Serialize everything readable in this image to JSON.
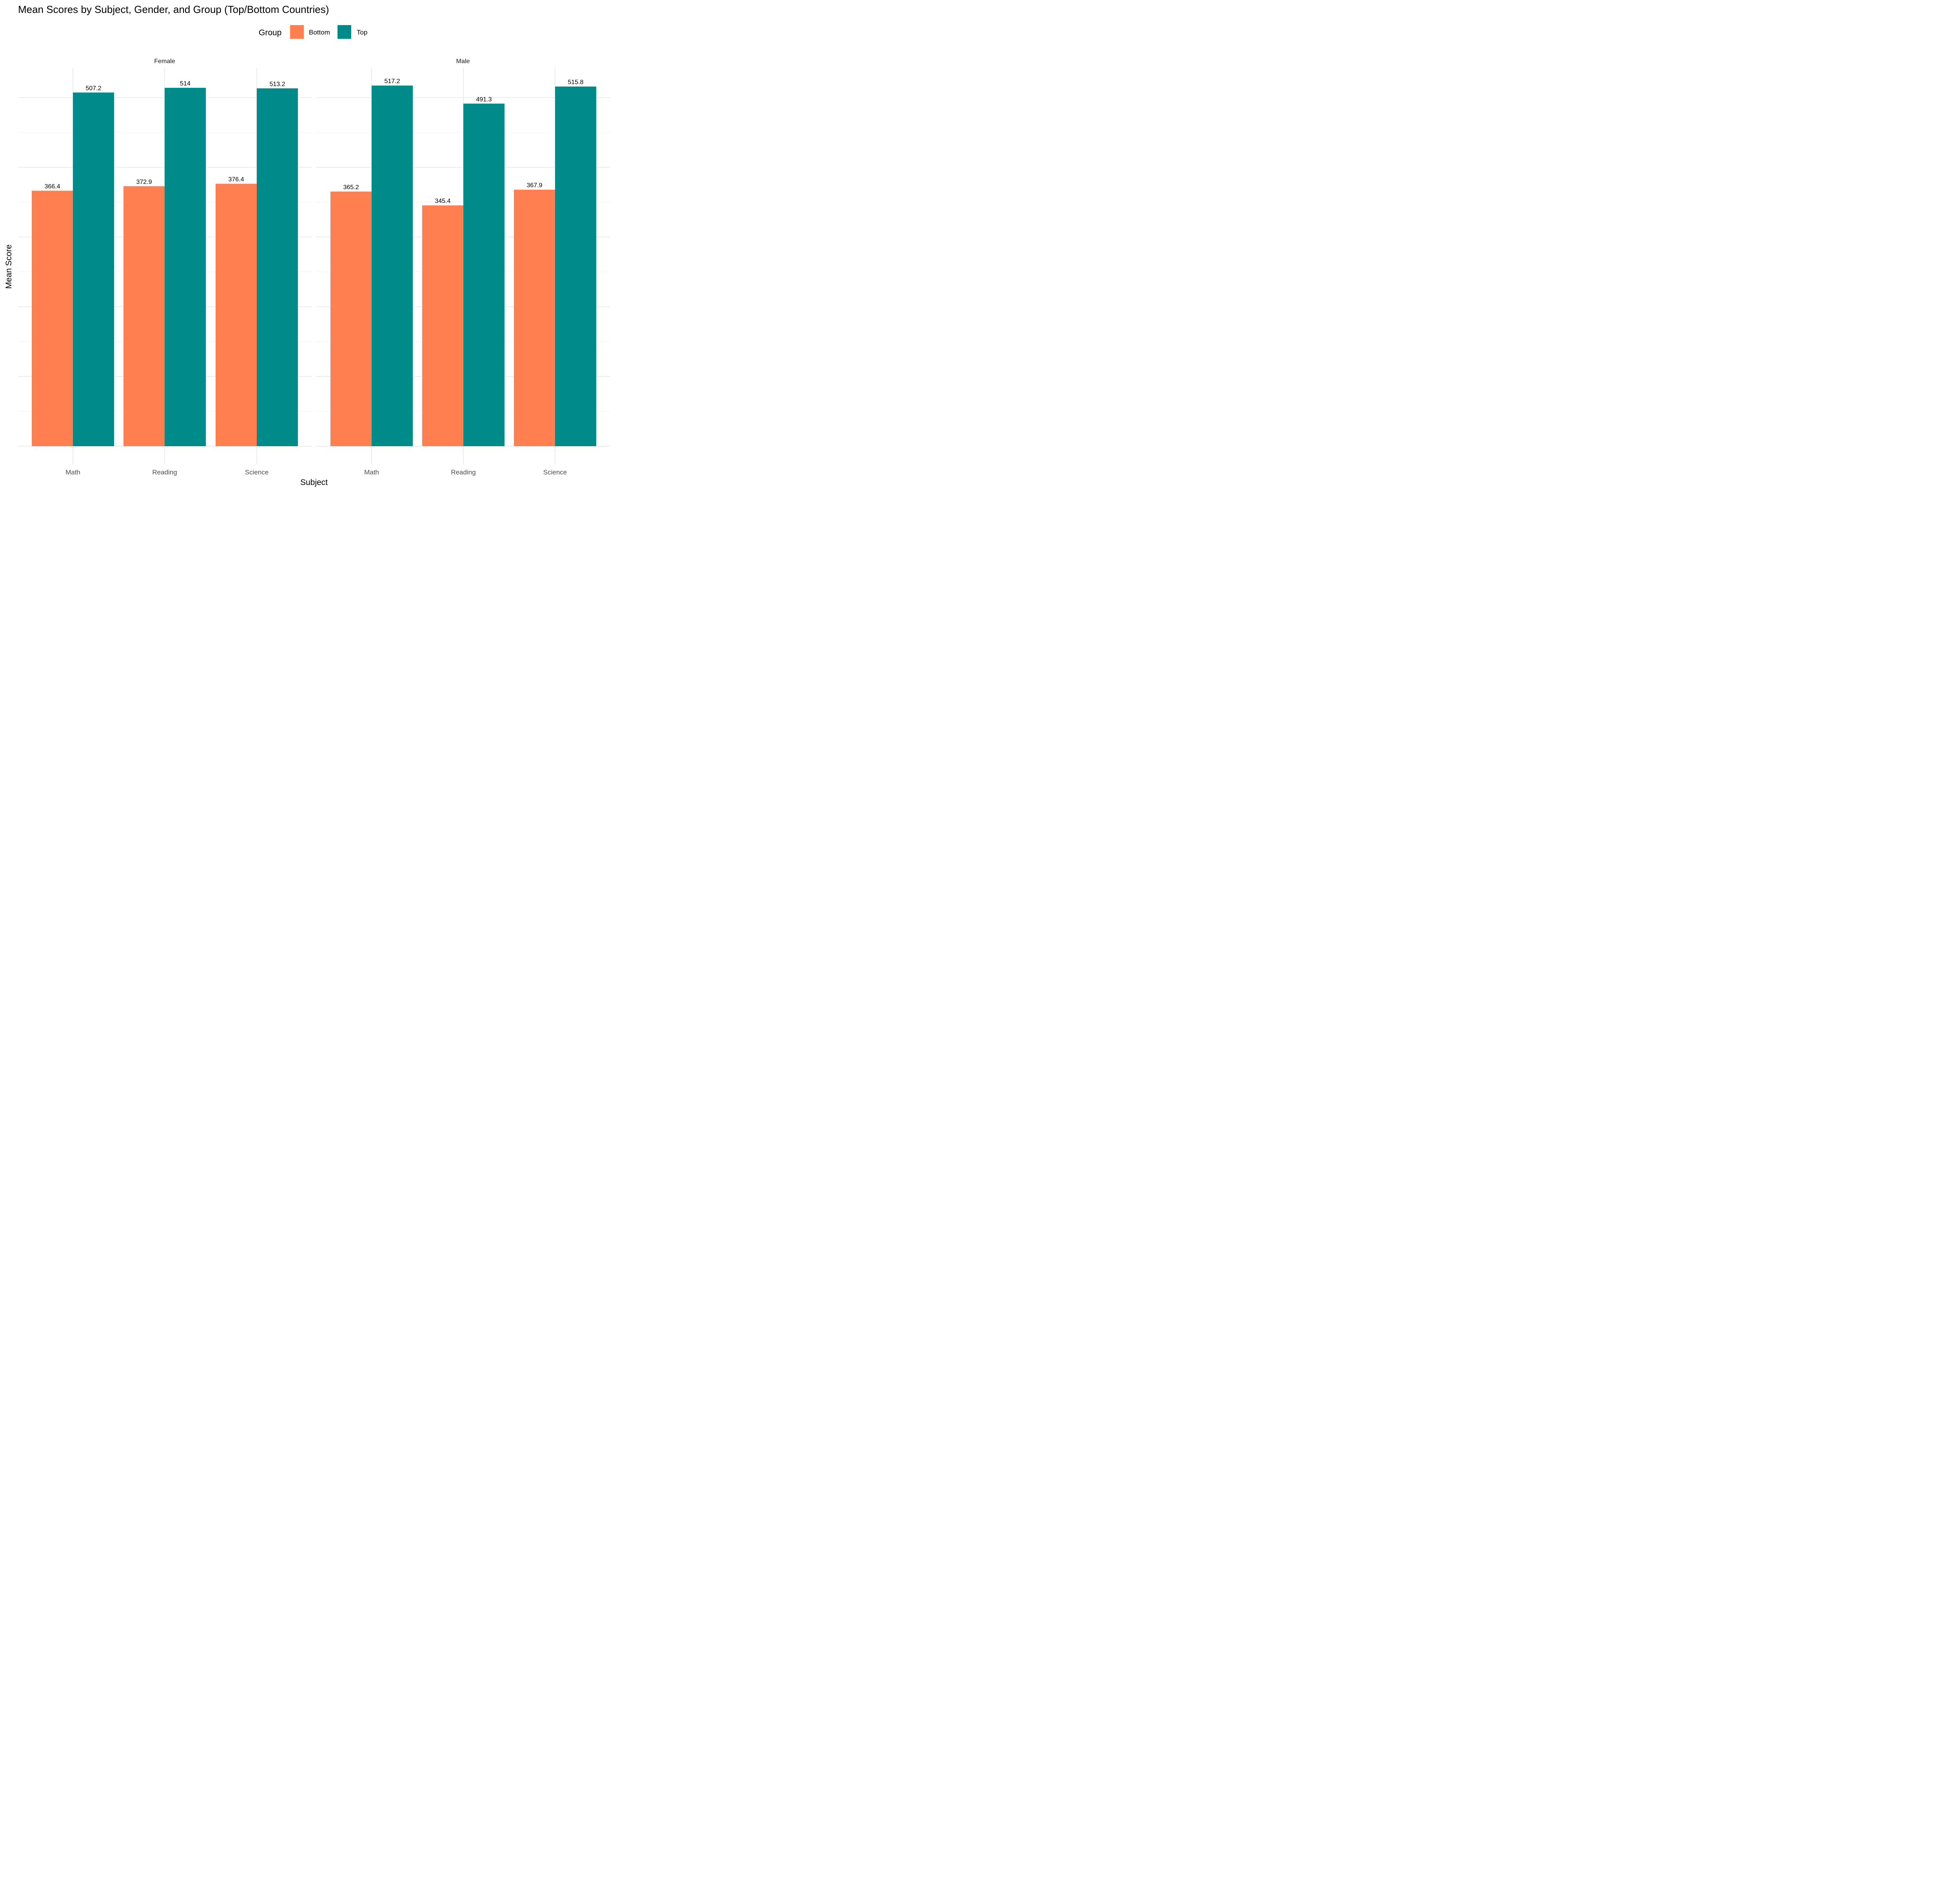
{
  "chart_data": {
    "type": "bar",
    "title": "Mean Scores by Subject, Gender, and Group (Top/Bottom Countries)",
    "xlabel": "Subject",
    "ylabel": "Mean Score",
    "ylim": [
      0,
      550
    ],
    "y_ticks_shown": false,
    "grid": true,
    "legend": {
      "title": "Group",
      "position": "top",
      "entries": [
        "Bottom",
        "Top"
      ]
    },
    "colors": {
      "Bottom": "#FF7F50",
      "Top": "#008B8B"
    },
    "facets": [
      {
        "name": "Female",
        "categories": [
          "Math",
          "Reading",
          "Science"
        ],
        "series": [
          {
            "name": "Bottom",
            "values": [
              366.4,
              372.9,
              376.4
            ],
            "labels": [
              "366.4",
              "372.9",
              "376.4"
            ]
          },
          {
            "name": "Top",
            "values": [
              507.2,
              514,
              513.2
            ],
            "labels": [
              "507.2",
              "514",
              "513.2"
            ]
          }
        ]
      },
      {
        "name": "Male",
        "categories": [
          "Math",
          "Reading",
          "Science"
        ],
        "series": [
          {
            "name": "Bottom",
            "values": [
              365.2,
              345.4,
              367.9
            ],
            "labels": [
              "365.2",
              "345.4",
              "367.9"
            ]
          },
          {
            "name": "Top",
            "values": [
              517.2,
              491.3,
              515.8
            ],
            "labels": [
              "517.2",
              "491.3",
              "515.8"
            ]
          }
        ]
      }
    ]
  }
}
